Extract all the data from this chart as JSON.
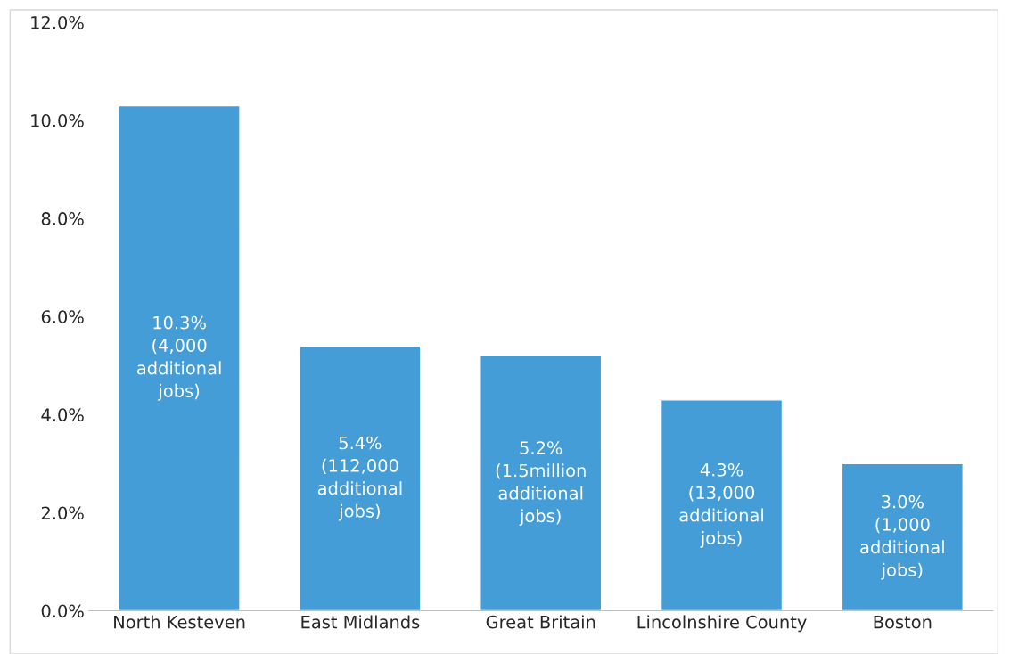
{
  "chart_data": {
    "type": "bar",
    "categories": [
      "North Kesteven",
      "East Midlands",
      "Great Britain",
      "Lincolnshire County",
      "Boston"
    ],
    "values": [
      10.3,
      5.4,
      5.2,
      4.3,
      3.0
    ],
    "color": "#449dd6",
    "value_labels": [
      "10.3%\n(4,000\nadditional\njobs)",
      "5.4%\n(112,000\nadditional\njobs)",
      "5.2%\n(1.5million\nadditional\njobs)",
      "4.3%\n(13,000\nadditional\njobs)",
      "3.0%\n(1,000\nadditional\njobs)"
    ],
    "ylim": [
      0,
      12
    ],
    "yticks": [
      {
        "value": 0,
        "label": "0.0%"
      },
      {
        "value": 2,
        "label": "2.0%"
      },
      {
        "value": 4,
        "label": "4.0%"
      },
      {
        "value": 6,
        "label": "6.0%"
      },
      {
        "value": 8,
        "label": "8.0%"
      },
      {
        "value": 10,
        "label": "10.0%"
      },
      {
        "value": 12,
        "label": "12.0%"
      }
    ],
    "grid": false
  }
}
